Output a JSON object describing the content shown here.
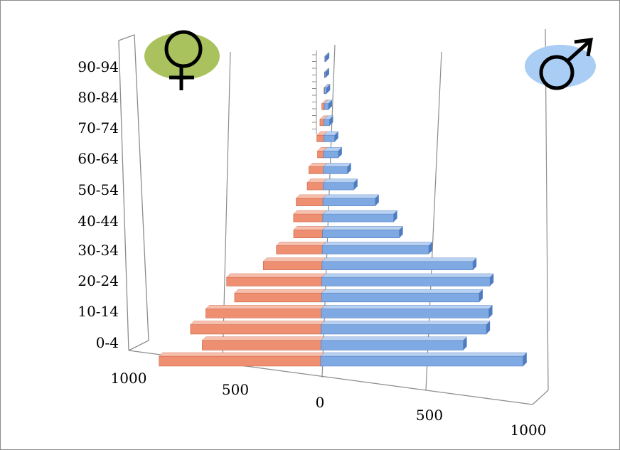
{
  "colors": {
    "female_bar": "#ef8f72",
    "female_bar_top": "#f7c0ae",
    "female_bar_dark": "#c9603f",
    "male_bar": "#7fa9e2",
    "male_bar_top": "#b9d1f1",
    "male_bar_dark": "#4f7cc0",
    "female_symbol_bg": "#a9c25d",
    "male_symbol_bg": "#a9cdf4",
    "grid": "#8c8c8c",
    "frame": "#8c8c8c"
  },
  "icons": {
    "female": "female-symbol-icon",
    "male": "male-symbol-icon"
  },
  "chart_data": {
    "type": "bar",
    "orientation": "horizontal",
    "style": "3d-population-pyramid",
    "title": "",
    "xlabel": "",
    "ylabel": "",
    "categories": [
      "0-4",
      "5-9",
      "10-14",
      "15-19",
      "20-24",
      "25-29",
      "30-34",
      "35-39",
      "40-44",
      "45-49",
      "50-54",
      "55-59",
      "60-64",
      "65-69",
      "70-74",
      "75-79",
      "80-84",
      "85-89",
      "90-94",
      "95-99"
    ],
    "category_labels": [
      "0-4",
      "10-14",
      "20-24",
      "30-34",
      "40-44",
      "50-54",
      "60-64",
      "70-74",
      "80-84",
      "90-94"
    ],
    "series": [
      {
        "values": [
          710,
          550,
          640,
          600,
          480,
          560,
          370,
          310,
          210,
          230,
          230,
          150,
          150,
          70,
          90,
          60,
          40,
          10,
          5,
          5
        ]
      },
      {
        "values": [
          890,
          660,
          810,
          870,
          870,
          990,
          950,
          720,
          560,
          560,
          450,
          290,
          250,
          170,
          140,
          80,
          70,
          40,
          20,
          20
        ]
      }
    ],
    "xlim": [
      -1000,
      1000
    ],
    "x_ticks": [
      {
        "value": -1000,
        "label": "1000"
      },
      {
        "value": -500,
        "label": "500"
      },
      {
        "value": 0,
        "label": "0"
      },
      {
        "value": 500,
        "label": "500"
      },
      {
        "value": 1000,
        "label": "1000"
      }
    ],
    "grid": true,
    "legend": "none"
  }
}
